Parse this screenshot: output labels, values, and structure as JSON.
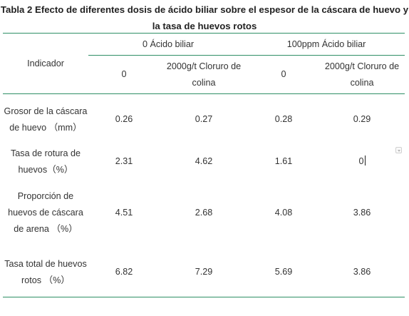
{
  "table": {
    "caption": "Tabla 2 Efecto de diferentes dosis de ácido biliar sobre el espesor de la cáscara de huevo y la tasa de huevos rotos",
    "header": {
      "indicator": "Indicador",
      "group1": "0 Ácido biliar",
      "group2": "100ppm Ácido biliar",
      "sub": [
        "0",
        "2000g/t Cloruro de colina",
        "0",
        "2000g/t Cloruro de colina"
      ]
    },
    "rows": [
      {
        "indicator": "Grosor de la cáscara de huevo （mm）",
        "values": [
          "0.26",
          "0.27",
          "0.28",
          "0.29"
        ]
      },
      {
        "indicator": "Tasa de rotura de huevos（%）",
        "values": [
          "2.31",
          "4.62",
          "1.61",
          "0"
        ]
      },
      {
        "indicator": "Proporción de huevos de cáscara de arena （%）",
        "values": [
          "4.51",
          "2.68",
          "4.08",
          "3.86"
        ]
      },
      {
        "indicator": "Tasa total de huevos rotos （%）",
        "values": [
          "6.82",
          "7.29",
          "5.69",
          "3.86"
        ]
      }
    ]
  }
}
